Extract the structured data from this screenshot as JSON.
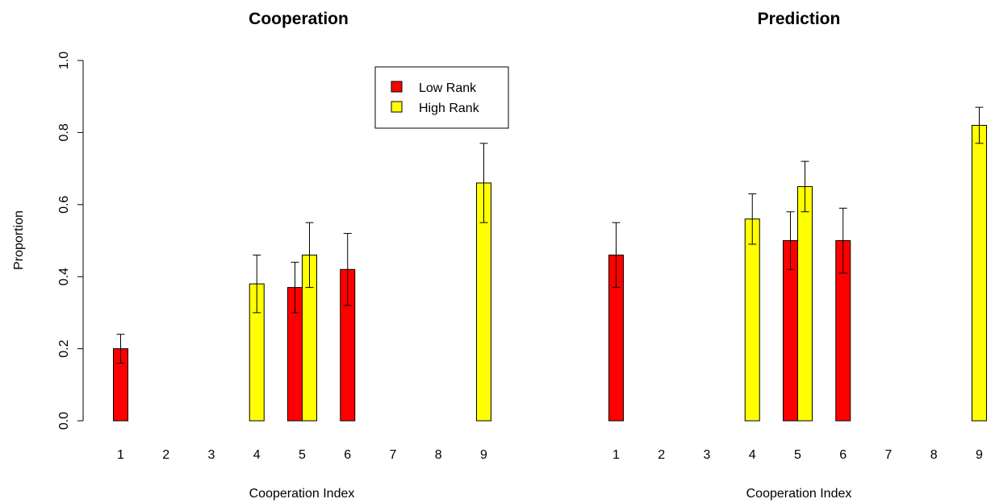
{
  "chart_data": [
    {
      "type": "bar",
      "title": "Cooperation",
      "xlabel": "Cooperation Index",
      "ylabel": "Proportion",
      "categories": [
        "1",
        "2",
        "3",
        "4",
        "5",
        "6",
        "7",
        "8",
        "9"
      ],
      "ylim": [
        0,
        1
      ],
      "yticks": [
        "0.0",
        "0.2",
        "0.4",
        "0.6",
        "0.8",
        "1.0"
      ],
      "legend": {
        "position": "top-right",
        "entries": [
          "Low Rank",
          "High Rank"
        ]
      },
      "series": [
        {
          "name": "Low Rank",
          "color": "#ff0000",
          "values": [
            0.2,
            null,
            null,
            null,
            0.37,
            0.42,
            null,
            null,
            null
          ],
          "error_low": [
            0.16,
            null,
            null,
            null,
            0.3,
            0.32,
            null,
            null,
            null
          ],
          "error_high": [
            0.24,
            null,
            null,
            null,
            0.44,
            0.52,
            null,
            null,
            null
          ]
        },
        {
          "name": "High Rank",
          "color": "#ffff00",
          "values": [
            null,
            null,
            null,
            0.38,
            0.46,
            null,
            null,
            null,
            0.66
          ],
          "error_low": [
            null,
            null,
            null,
            0.3,
            0.37,
            null,
            null,
            null,
            0.55
          ],
          "error_high": [
            null,
            null,
            null,
            0.46,
            0.55,
            null,
            null,
            null,
            0.77
          ]
        }
      ]
    },
    {
      "type": "bar",
      "title": "Prediction",
      "xlabel": "Cooperation Index",
      "ylabel": "",
      "categories": [
        "1",
        "2",
        "3",
        "4",
        "5",
        "6",
        "7",
        "8",
        "9"
      ],
      "ylim": [
        0,
        1
      ],
      "series": [
        {
          "name": "Low Rank",
          "color": "#ff0000",
          "values": [
            0.46,
            null,
            null,
            null,
            0.5,
            0.5,
            null,
            null,
            null
          ],
          "error_low": [
            0.37,
            null,
            null,
            null,
            0.42,
            0.41,
            null,
            null,
            null
          ],
          "error_high": [
            0.55,
            null,
            null,
            null,
            0.58,
            0.59,
            null,
            null,
            null
          ]
        },
        {
          "name": "High Rank",
          "color": "#ffff00",
          "values": [
            null,
            null,
            null,
            0.56,
            0.65,
            null,
            null,
            null,
            0.82
          ],
          "error_low": [
            null,
            null,
            null,
            0.49,
            0.58,
            null,
            null,
            null,
            0.77
          ],
          "error_high": [
            null,
            null,
            null,
            0.63,
            0.72,
            null,
            null,
            null,
            0.87
          ]
        }
      ]
    }
  ]
}
